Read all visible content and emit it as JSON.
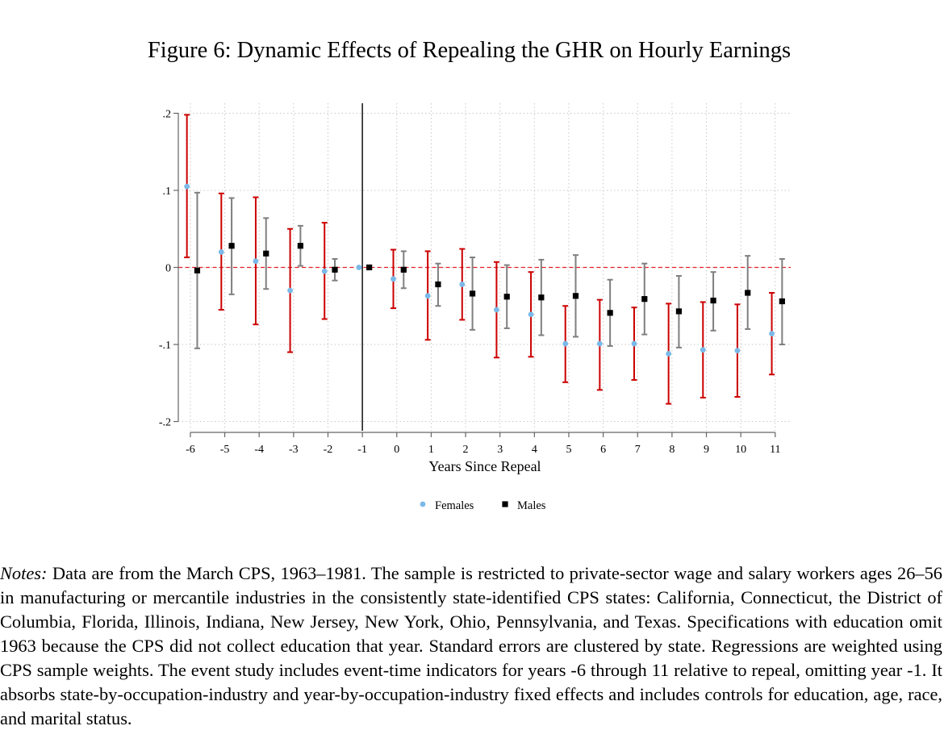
{
  "figure": {
    "title": "Figure 6: Dynamic Effects of Repealing the GHR on Hourly Earnings"
  },
  "chart_data": {
    "type": "scatter",
    "subtype": "event-study coefficient plot with confidence intervals",
    "xlabel": "Years Since Repeal",
    "ylabel": "",
    "x": [
      -6,
      -5,
      -4,
      -3,
      -2,
      -1,
      0,
      1,
      2,
      3,
      4,
      5,
      6,
      7,
      8,
      9,
      10,
      11
    ],
    "xticks": [
      "-6",
      "-5",
      "-4",
      "-3",
      "-2",
      "-1",
      "0",
      "1",
      "2",
      "3",
      "4",
      "5",
      "6",
      "7",
      "8",
      "9",
      "10",
      "11"
    ],
    "yticks": [
      {
        "value": -0.2,
        "label": "-.2"
      },
      {
        "value": -0.1,
        "label": "-.1"
      },
      {
        "value": 0,
        "label": "0"
      },
      {
        "value": 0.1,
        "label": ".1"
      },
      {
        "value": 0.2,
        "label": ".2"
      }
    ],
    "xlim": [
      -6.35,
      11.45
    ],
    "ylim": [
      -0.212,
      0.213
    ],
    "grid": true,
    "reference_lines": {
      "horizontal_y": 0,
      "vertical_x": -1
    },
    "legend_position": "bottom-center",
    "series": [
      {
        "name": "Females",
        "color": "#7ab9e8",
        "ci_color": "#cc0000",
        "marker": "circle",
        "offset": -0.1,
        "estimate": [
          0.105,
          0.02,
          0.008,
          -0.03,
          -0.005,
          0,
          -0.015,
          -0.037,
          -0.022,
          -0.055,
          -0.061,
          -0.099,
          -0.099,
          -0.099,
          -0.112,
          -0.107,
          -0.108,
          -0.086
        ],
        "ci_lower": [
          0.013,
          -0.055,
          -0.074,
          -0.11,
          -0.067,
          null,
          -0.053,
          -0.094,
          -0.068,
          -0.117,
          -0.116,
          -0.149,
          -0.159,
          -0.146,
          -0.177,
          -0.169,
          -0.168,
          -0.139
        ],
        "ci_upper": [
          0.198,
          0.096,
          0.091,
          0.05,
          0.058,
          null,
          0.023,
          0.021,
          0.024,
          0.007,
          -0.006,
          -0.05,
          -0.042,
          -0.052,
          -0.047,
          -0.045,
          -0.048,
          -0.033
        ]
      },
      {
        "name": "Males",
        "color": "#000000",
        "ci_color": "#7f7f7f",
        "marker": "square",
        "offset": 0.2,
        "estimate": [
          -0.004,
          0.028,
          0.018,
          0.028,
          -0.003,
          0,
          -0.003,
          -0.022,
          -0.034,
          -0.038,
          -0.039,
          -0.037,
          -0.059,
          -0.041,
          -0.057,
          -0.043,
          -0.033,
          -0.044
        ],
        "ci_lower": [
          -0.105,
          -0.035,
          -0.028,
          0.002,
          -0.017,
          null,
          -0.027,
          -0.05,
          -0.081,
          -0.079,
          -0.088,
          -0.09,
          -0.102,
          -0.087,
          -0.104,
          -0.082,
          -0.08,
          -0.1
        ],
        "ci_upper": [
          0.097,
          0.09,
          0.064,
          0.054,
          0.011,
          null,
          0.021,
          0.005,
          0.013,
          0.003,
          0.01,
          0.016,
          -0.016,
          0.005,
          -0.011,
          -0.006,
          0.015,
          0.011
        ]
      }
    ]
  },
  "notes": {
    "label": "Notes:",
    "text": " Data are from the March CPS, 1963–1981. The sample is restricted to private-sector wage and salary workers ages 26–56 in manufacturing or mercantile industries in the consistently state-identified CPS states: California, Connecticut, the District of Columbia, Florida, Illinois, Indiana, New Jersey, New York, Ohio, Pennsylvania, and Texas. Specifications with education omit 1963 because the CPS did not collect education that year. Standard errors are clustered by state. Regressions are weighted using CPS sample weights. The event study includes event-time indicators for years -6 through 11 relative to repeal, omitting year -1. It absorbs state-by-occupation-industry and year-by-occupation-industry fixed effects and includes controls for education, age, race, and marital status."
  }
}
